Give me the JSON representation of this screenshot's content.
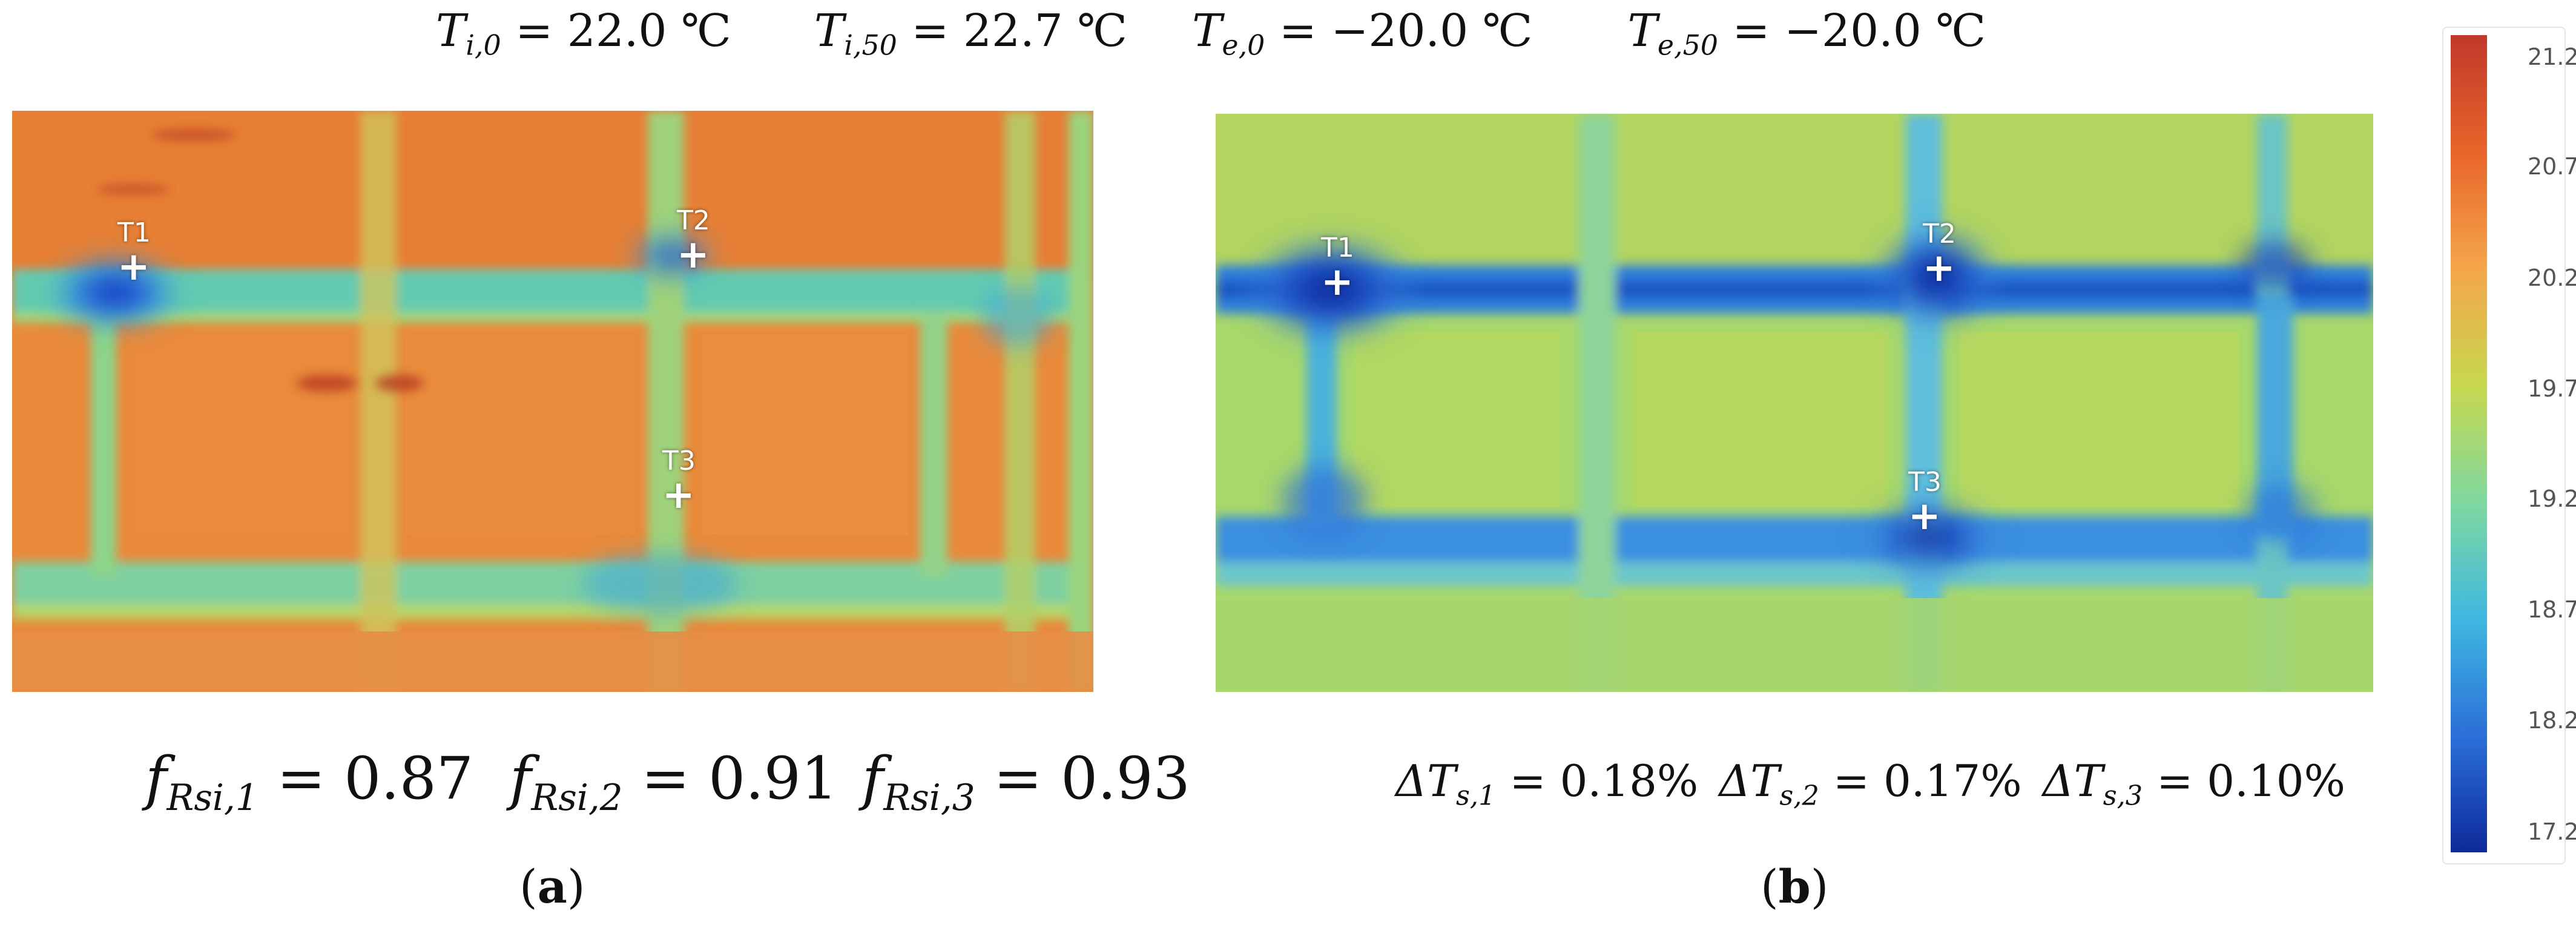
{
  "header": {
    "ti0": {
      "sym": "T",
      "sub": "i,0",
      "rest": " = 22.0 ℃"
    },
    "ti50": {
      "sym": "T",
      "sub": "i,50",
      "rest": " = 22.7 ℃"
    },
    "te0": {
      "sym": "T",
      "sub": "e,0",
      "rest": " = −20.0 ℃"
    },
    "te50": {
      "sym": "T",
      "sub": "e,50",
      "rest": " = −20.0 ℃"
    }
  },
  "panel_a": {
    "markers": [
      "T1",
      "T2",
      "T3"
    ],
    "equations": [
      {
        "sym": "f",
        "sub": "Rsi,1",
        "rest": " = 0.87"
      },
      {
        "sym": "f",
        "sub": "Rsi,2",
        "rest": " = 0.91"
      },
      {
        "sym": "f",
        "sub": "Rsi,3",
        "rest": " = 0.93"
      }
    ],
    "caption_letter": "a"
  },
  "panel_b": {
    "markers": [
      "T1",
      "T2",
      "T3"
    ],
    "equations": [
      {
        "sym": "ΔT",
        "sub": "s,1",
        "rest": " = 0.18%"
      },
      {
        "sym": "ΔT",
        "sub": "s,2",
        "rest": " = 0.17%"
      },
      {
        "sym": "ΔT",
        "sub": "s,3",
        "rest": " = 0.10%"
      }
    ],
    "caption_letter": "b"
  },
  "colorbar": {
    "ticks": [
      "21.2",
      "20.7",
      "20.2",
      "19.7",
      "19.2",
      "18.7",
      "18.2",
      "17.2"
    ],
    "colors": [
      "#c0392b",
      "#e8652a",
      "#f4a64a",
      "#c7d84f",
      "#7fd8a0",
      "#3fb8e0",
      "#2b6fd8",
      "#0d2a9a"
    ]
  }
}
